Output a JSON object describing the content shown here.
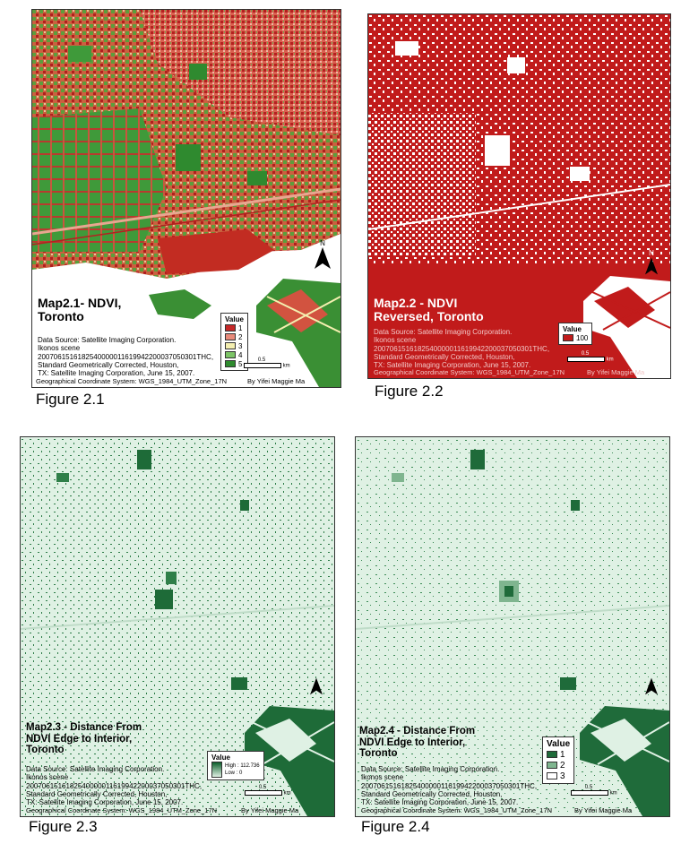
{
  "figures": [
    {
      "caption": "Figure 2.1",
      "title_line1": "Map2.1- NDVI,",
      "title_line2": "Toronto",
      "legend_title": "Value",
      "legend_items": [
        "1",
        "2",
        "3",
        "4",
        "5"
      ],
      "legend_colors": [
        "#c62828",
        "#e88a7a",
        "#f4efb0",
        "#7cc466",
        "#2e8b2e"
      ],
      "scale_label": "0.5",
      "scale_unit": "km"
    },
    {
      "caption": "Figure 2.2",
      "title_line1": "Map2.2 - NDVI",
      "title_line2": "Reversed, Toronto",
      "legend_title": "Value",
      "legend_items": [
        "100"
      ],
      "legend_colors": [
        "#c11b1b"
      ],
      "scale_label": "0.5",
      "scale_unit": "km"
    },
    {
      "caption": "Figure 2.3",
      "title_line1": "Map2.3 - Distance From",
      "title_line2": "NDVI Edge to Interior,",
      "title_line3": "Toronto",
      "legend_title": "Value",
      "legend_high": "High : 112.736",
      "legend_low": "Low : 0",
      "scale_label": "0.5",
      "scale_unit": "km"
    },
    {
      "caption": "Figure 2.4",
      "title_line1": "Map2.4 - Distance From",
      "title_line2": "NDVI Edge to Interior,",
      "title_line3": "Toronto",
      "legend_title": "Value",
      "legend_items": [
        "1",
        "2",
        "3"
      ],
      "legend_colors": [
        "#1f6b3a",
        "#7fb58f",
        "#ffffff"
      ],
      "scale_label": "0.5",
      "scale_unit": "km"
    }
  ],
  "source": {
    "line1": "Data Source: Satellite Imaging Corporation.",
    "line2": "Ikonos scene",
    "line3": "2007061516182540000011619942200037050301THC,",
    "line4": "Standard Geometrically Corrected, Houston,",
    "line5": "TX: Satellite Imaging Corporation, June 15, 2007."
  },
  "coordinate_system": "Geographical Coordinate System: WGS_1984_UTM_Zone_17N",
  "author": "By Yifei Maggie Ma",
  "north_label": "N",
  "colors": {
    "ndvi_red": "#c62828",
    "ndvi_green": "#3a8f34",
    "reversed_red": "#c11b1b",
    "distance_bg": "#dff1e4",
    "distance_dark": "#1e6b38"
  }
}
